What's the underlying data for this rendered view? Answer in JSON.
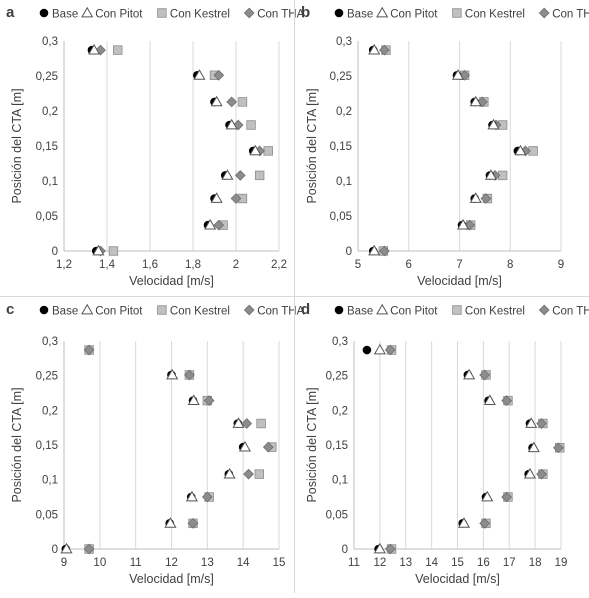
{
  "legend_labels": [
    "Base",
    "Con Pitot",
    "Con Kestrel",
    "Con THA"
  ],
  "colors": {
    "base": "#000000",
    "pitot_stroke": "#555555",
    "kestrel_fill": "#c0c0c0",
    "kestrel_stroke": "#8c8c8c",
    "tha_fill": "#8c8c8c",
    "tha_stroke": "#6e6e6e",
    "grid": "#d9d9d9",
    "text": "#404040"
  },
  "chart_data": [
    {
      "panel": "a",
      "type": "scatter",
      "xlabel": "Velocidad [m/s]",
      "ylabel": "Posición del CTA [m]",
      "xlim": [
        1.2,
        2.2
      ],
      "ylim": [
        0,
        0.3
      ],
      "xticks": [
        "1,2",
        "1,4",
        "1,6",
        "1,8",
        "2",
        "2,2"
      ],
      "yticks": [
        "0",
        "0,05",
        "0,1",
        "0,15",
        "0,2",
        "0,25",
        "0,3"
      ],
      "grid": "vertical",
      "legend": "top",
      "series": [
        {
          "name": "Base",
          "marker": "circle",
          "points": [
            [
              1.35,
              0
            ],
            [
              1.87,
              0.037
            ],
            [
              1.9,
              0.075
            ],
            [
              1.95,
              0.108
            ],
            [
              2.08,
              0.143
            ],
            [
              1.97,
              0.18
            ],
            [
              1.9,
              0.213
            ],
            [
              1.82,
              0.251
            ],
            [
              1.33,
              0.287
            ]
          ]
        },
        {
          "name": "Con Pitot",
          "marker": "triangle",
          "points": [
            [
              1.36,
              0
            ],
            [
              1.88,
              0.037
            ],
            [
              1.91,
              0.075
            ],
            [
              1.96,
              0.108
            ],
            [
              2.09,
              0.143
            ],
            [
              1.98,
              0.18
            ],
            [
              1.91,
              0.213
            ],
            [
              1.83,
              0.251
            ],
            [
              1.34,
              0.287
            ]
          ]
        },
        {
          "name": "Con Kestrel",
          "marker": "square",
          "points": [
            [
              1.43,
              0
            ],
            [
              1.94,
              0.037
            ],
            [
              2.03,
              0.075
            ],
            [
              2.11,
              0.108
            ],
            [
              2.15,
              0.143
            ],
            [
              2.07,
              0.18
            ],
            [
              2.03,
              0.213
            ],
            [
              1.9,
              0.251
            ],
            [
              1.45,
              0.287
            ]
          ]
        },
        {
          "name": "Con THA",
          "marker": "diamond",
          "points": [
            [
              1.37,
              0
            ],
            [
              1.92,
              0.037
            ],
            [
              2.0,
              0.075
            ],
            [
              2.02,
              0.108
            ],
            [
              2.11,
              0.143
            ],
            [
              2.01,
              0.18
            ],
            [
              1.98,
              0.213
            ],
            [
              1.92,
              0.251
            ],
            [
              1.37,
              0.287
            ]
          ]
        }
      ]
    },
    {
      "panel": "b",
      "type": "scatter",
      "xlabel": "Velocidad [m/s]",
      "ylabel": "Posición del CTA [m]",
      "xlim": [
        5,
        9
      ],
      "ylim": [
        0,
        0.3
      ],
      "xticks": [
        "5",
        "6",
        "7",
        "8",
        "9"
      ],
      "yticks": [
        "0",
        "0,05",
        "0,1",
        "0,15",
        "0,2",
        "0,25",
        "0,3"
      ],
      "grid": "vertical",
      "legend": "top",
      "series": [
        {
          "name": "Base",
          "marker": "circle",
          "points": [
            [
              5.3,
              0
            ],
            [
              7.05,
              0.037
            ],
            [
              7.3,
              0.075
            ],
            [
              7.6,
              0.108
            ],
            [
              8.15,
              0.143
            ],
            [
              7.65,
              0.18
            ],
            [
              7.3,
              0.213
            ],
            [
              6.95,
              0.251
            ],
            [
              5.3,
              0.287
            ]
          ]
        },
        {
          "name": "Con Pitot",
          "marker": "triangle",
          "points": [
            [
              5.32,
              0
            ],
            [
              7.07,
              0.037
            ],
            [
              7.32,
              0.075
            ],
            [
              7.62,
              0.108
            ],
            [
              8.2,
              0.143
            ],
            [
              7.67,
              0.18
            ],
            [
              7.32,
              0.213
            ],
            [
              6.97,
              0.251
            ],
            [
              5.32,
              0.287
            ]
          ]
        },
        {
          "name": "Con Kestrel",
          "marker": "square",
          "points": [
            [
              5.5,
              0
            ],
            [
              7.22,
              0.037
            ],
            [
              7.55,
              0.075
            ],
            [
              7.85,
              0.108
            ],
            [
              8.45,
              0.143
            ],
            [
              7.85,
              0.18
            ],
            [
              7.48,
              0.213
            ],
            [
              7.1,
              0.251
            ],
            [
              5.55,
              0.287
            ]
          ]
        },
        {
          "name": "Con THA",
          "marker": "diamond",
          "points": [
            [
              5.52,
              0
            ],
            [
              7.2,
              0.037
            ],
            [
              7.52,
              0.075
            ],
            [
              7.7,
              0.108
            ],
            [
              8.3,
              0.143
            ],
            [
              7.72,
              0.18
            ],
            [
              7.45,
              0.213
            ],
            [
              7.1,
              0.251
            ],
            [
              5.52,
              0.287
            ]
          ]
        }
      ]
    },
    {
      "panel": "c",
      "type": "scatter",
      "xlabel": "Velocidad [m/s]",
      "ylabel": "Posición del CTA [m]",
      "xlim": [
        9,
        15
      ],
      "ylim": [
        0,
        0.3
      ],
      "xticks": [
        "9",
        "10",
        "11",
        "12",
        "13",
        "14",
        "15"
      ],
      "yticks": [
        "0",
        "0,05",
        "0,1",
        "0,15",
        "0,2",
        "0,25",
        "0,3"
      ],
      "grid": "vertical",
      "legend": "top",
      "series": [
        {
          "name": "Base",
          "marker": "circle",
          "points": [
            [
              9.05,
              0
            ],
            [
              11.95,
              0.037
            ],
            [
              12.55,
              0.075
            ],
            [
              13.6,
              0.108
            ],
            [
              14.0,
              0.147
            ],
            [
              13.85,
              0.181
            ],
            [
              12.6,
              0.214
            ],
            [
              12.0,
              0.251
            ]
          ]
        },
        {
          "name": "Con Pitot",
          "marker": "triangle",
          "points": [
            [
              9.07,
              0
            ],
            [
              11.97,
              0.037
            ],
            [
              12.57,
              0.075
            ],
            [
              13.62,
              0.108
            ],
            [
              14.05,
              0.147
            ],
            [
              13.87,
              0.181
            ],
            [
              12.62,
              0.214
            ],
            [
              12.02,
              0.251
            ]
          ]
        },
        {
          "name": "Con Kestrel",
          "marker": "square",
          "points": [
            [
              9.7,
              0
            ],
            [
              12.6,
              0.037
            ],
            [
              13.05,
              0.075
            ],
            [
              14.45,
              0.108
            ],
            [
              14.8,
              0.147
            ],
            [
              14.5,
              0.181
            ],
            [
              13.0,
              0.214
            ],
            [
              12.5,
              0.251
            ],
            [
              9.7,
              0.287
            ]
          ]
        },
        {
          "name": "Con THA",
          "marker": "diamond",
          "points": [
            [
              9.7,
              0
            ],
            [
              12.6,
              0.037
            ],
            [
              13.0,
              0.075
            ],
            [
              14.15,
              0.108
            ],
            [
              14.7,
              0.147
            ],
            [
              14.1,
              0.181
            ],
            [
              13.05,
              0.214
            ],
            [
              12.5,
              0.251
            ],
            [
              9.7,
              0.287
            ]
          ]
        }
      ]
    },
    {
      "panel": "d",
      "type": "scatter",
      "xlabel": "Velocidad [m/s]",
      "ylabel": "Posición del CTA [m]",
      "xlim": [
        11,
        19
      ],
      "ylim": [
        0,
        0.3
      ],
      "xticks": [
        "11",
        "12",
        "13",
        "14",
        "15",
        "16",
        "17",
        "18",
        "19"
      ],
      "yticks": [
        "0",
        "0,05",
        "0,1",
        "0,15",
        "0,2",
        "0,25",
        "0,3"
      ],
      "grid": "vertical",
      "legend": "top",
      "series": [
        {
          "name": "Base",
          "marker": "circle",
          "points": [
            [
              11.95,
              0
            ],
            [
              15.2,
              0.037
            ],
            [
              16.1,
              0.075
            ],
            [
              17.75,
              0.108
            ],
            [
              17.9,
              0.146
            ],
            [
              17.8,
              0.181
            ],
            [
              16.2,
              0.214
            ],
            [
              15.4,
              0.251
            ],
            [
              11.5,
              0.287
            ]
          ]
        },
        {
          "name": "Con Pitot",
          "marker": "triangle",
          "points": [
            [
              12.0,
              0
            ],
            [
              15.25,
              0.037
            ],
            [
              16.15,
              0.075
            ],
            [
              17.8,
              0.108
            ],
            [
              17.95,
              0.146
            ],
            [
              17.85,
              0.181
            ],
            [
              16.25,
              0.214
            ],
            [
              15.45,
              0.251
            ],
            [
              12.0,
              0.287
            ]
          ]
        },
        {
          "name": "Con Kestrel",
          "marker": "square",
          "points": [
            [
              12.45,
              0
            ],
            [
              16.1,
              0.037
            ],
            [
              16.95,
              0.075
            ],
            [
              18.3,
              0.108
            ],
            [
              18.95,
              0.146
            ],
            [
              18.3,
              0.181
            ],
            [
              16.95,
              0.214
            ],
            [
              16.1,
              0.251
            ],
            [
              12.45,
              0.287
            ]
          ]
        },
        {
          "name": "Con THA",
          "marker": "diamond",
          "points": [
            [
              12.4,
              0
            ],
            [
              16.05,
              0.037
            ],
            [
              16.9,
              0.075
            ],
            [
              18.25,
              0.108
            ],
            [
              18.9,
              0.146
            ],
            [
              18.25,
              0.181
            ],
            [
              16.9,
              0.214
            ],
            [
              16.05,
              0.251
            ],
            [
              12.4,
              0.287
            ]
          ]
        }
      ]
    }
  ]
}
